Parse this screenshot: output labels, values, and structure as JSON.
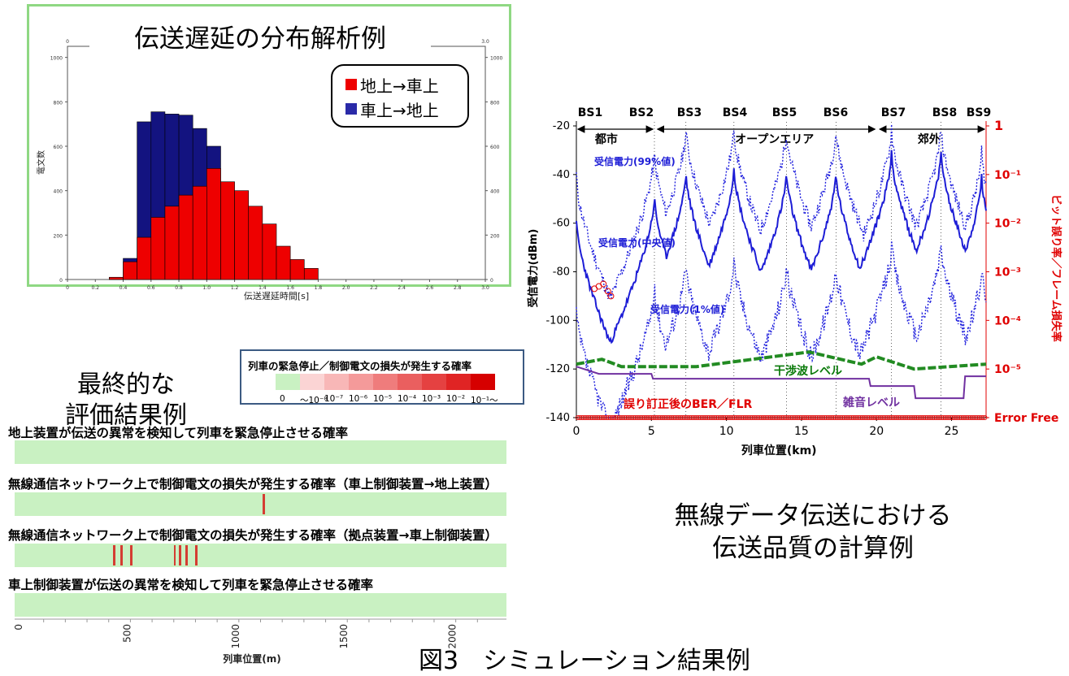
{
  "histogram": {
    "title": "伝送遅延の分布解析例",
    "xlabel": "伝送遅延時間[s]",
    "ylabel": "電文数",
    "x_ticks": [
      "0",
      "0.2",
      "0.4",
      "0.6",
      "0.8",
      "1.0",
      "1.2",
      "1.4",
      "1.6",
      "1.8",
      "2.0",
      "2.2",
      "2.4",
      "2.6",
      "2.8",
      "3.0"
    ],
    "top_x_ticks": [
      "0",
      "3.0"
    ],
    "y_ticks": [
      "0",
      "200",
      "400",
      "600",
      "800",
      "1000"
    ],
    "legend": [
      {
        "label": "地上→車上",
        "color": "#ee0000"
      },
      {
        "label": "車上→地上",
        "color": "#1a1a8c"
      }
    ]
  },
  "eval": {
    "caption_line1": "最終的な",
    "caption_line2": "評価結果例",
    "legend_title": "列車の緊急停止／制御電文の損失が発生する確率",
    "legend_ticks": [
      "0",
      "～10⁻⁸",
      "10⁻⁷",
      "10⁻⁶",
      "10⁻⁵",
      "10⁻⁴",
      "10⁻³",
      "10⁻²",
      "10⁻¹～"
    ],
    "bars": [
      {
        "title": "地上装置が伝送の異常を検知して列車を緊急停止させる確率",
        "events": []
      },
      {
        "title": "無線通信ネットワーク上で制御電文の損失が発生する確率（車上制御装置→地上装置）",
        "events": [
          1110
        ]
      },
      {
        "title": "無線通信ネットワーク上で制御電文の損失が発生する確率（拠点装置→車上制御装置）",
        "events": [
          420,
          455,
          500,
          700,
          725,
          755,
          800
        ]
      },
      {
        "title": "車上制御装置が伝送の異常を検知して列車を緊急停止させる確率",
        "events": []
      }
    ],
    "x_ticks": [
      "0",
      "500",
      "1000",
      "1500",
      "2000"
    ],
    "xlabel": "列車位置(m)"
  },
  "quality": {
    "caption_line1": "無線データ伝送における",
    "caption_line2": "伝送品質の計算例",
    "base_stations": [
      "BS1",
      "BS2",
      "BS3",
      "BS4",
      "BS5",
      "BS6",
      "BS7",
      "BS8",
      "BS9"
    ],
    "areas": [
      "都市",
      "オープンエリア",
      "郊外"
    ],
    "ylabel_left": "受信電力(dBm)",
    "ylabel_right": "ビット誤り率／フレーム損失率",
    "xlabel": "列車位置(km)",
    "y_ticks_left": [
      "-20",
      "-40",
      "-60",
      "-80",
      "-100",
      "-120",
      "-140"
    ],
    "y_ticks_right": [
      "1",
      "10⁻¹",
      "10⁻²",
      "10⁻³",
      "10⁻⁴",
      "10⁻⁵",
      "Error Free"
    ],
    "x_ticks": [
      "0",
      "5",
      "10",
      "15",
      "20",
      "25"
    ],
    "label_p99": "受信電力(99%値)",
    "label_median": "受信電力(中央値)",
    "label_p1": "受信電力(1%値)",
    "label_interference": "干渉波レベル",
    "label_noise": "雑音レベル",
    "label_ber": "誤り訂正後のBER／FLR"
  },
  "figure_caption": "図3　シミュレーション結果例",
  "chart_data": [
    {
      "type": "bar",
      "title": "伝送遅延の分布解析例",
      "xlabel": "伝送遅延時間[s]",
      "ylabel": "電文数",
      "xlim": [
        0,
        3.0
      ],
      "ylim": [
        0,
        1050
      ],
      "bin_width": 0.1,
      "categories": [
        0.3,
        0.4,
        0.5,
        0.6,
        0.7,
        0.8,
        0.9,
        1.0,
        1.1,
        1.2,
        1.3,
        1.4,
        1.5,
        1.6,
        1.7
      ],
      "series": [
        {
          "name": "地上→車上",
          "color": "#ee0000",
          "values": [
            10,
            80,
            190,
            280,
            330,
            380,
            420,
            500,
            440,
            400,
            330,
            250,
            150,
            90,
            50
          ]
        },
        {
          "name": "車上→地上",
          "color": "#1a1a8c",
          "values": [
            10,
            95,
            710,
            755,
            745,
            740,
            680,
            600,
            0,
            0,
            0,
            0,
            0,
            0,
            0
          ]
        }
      ]
    },
    {
      "type": "line",
      "title": "無線データ伝送における伝送品質の計算例",
      "xlabel": "列車位置(km)",
      "ylabel": "受信電力(dBm)",
      "xlim": [
        0,
        27.3
      ],
      "ylim": [
        -140,
        -18
      ],
      "bs_positions_km": [
        0,
        5.2,
        7.3,
        10.5,
        14.0,
        17.3,
        21.0,
        24.3,
        27.0
      ],
      "bs_levels_median_dBm": [
        -58,
        -48,
        -38,
        -36,
        -38,
        -38,
        -30,
        -30,
        -40
      ],
      "bs_levels_p99_dBm": [
        -40,
        -30,
        -20,
        -20,
        -20,
        -20,
        -20,
        -20,
        -30
      ],
      "series": [
        {
          "name": "受信電力(99%値)",
          "kind": "dotted"
        },
        {
          "name": "受信電力(中央値)",
          "kind": "solid"
        },
        {
          "name": "受信電力(1%値)",
          "kind": "dotted"
        },
        {
          "name": "干渉波レベル",
          "values_x": [
            0,
            1.7,
            3.0,
            8.0,
            15.5,
            19.0,
            20.0,
            22.5,
            27.3
          ],
          "values_y": [
            -118,
            -116,
            -119,
            -119,
            -113,
            -118,
            -115,
            -120,
            -118
          ]
        },
        {
          "name": "雑音レベル",
          "values_x": [
            0,
            1.5,
            5.0,
            5.1,
            19.5,
            19.6,
            22.5,
            22.6,
            25.8,
            25.9,
            27.3
          ],
          "values_y": [
            -119,
            -122,
            -122,
            -124,
            -124,
            -127,
            -127,
            -132,
            -132,
            -123,
            -123
          ]
        }
      ],
      "ber_red_circles": [
        {
          "x": 1.2,
          "y": -87
        },
        {
          "x": 1.5,
          "y": -86
        },
        {
          "x": 1.8,
          "y": -85
        },
        {
          "x": 2.1,
          "y": -88
        },
        {
          "x": 2.3,
          "y": -90
        }
      ]
    },
    {
      "type": "heatmap",
      "title": "",
      "xlabel": "列車位置(m)",
      "xlim": [
        0,
        2200
      ],
      "rows": [
        {
          "name": "地上装置が伝送の異常を検知して列車を緊急停止させる確率",
          "event_positions_m": []
        },
        {
          "name": "無線通信ネットワーク上で制御電文の損失が発生する確率（車上制御装置→地上装置）",
          "event_positions_m": [
            1110
          ]
        },
        {
          "name": "無線通信ネットワーク上で制御電文の損失が発生する確率（拠点装置→車上制御装置）",
          "event_positions_m": [
            420,
            455,
            500,
            700,
            725,
            755,
            800
          ]
        },
        {
          "name": "車上制御装置が伝送の異常を検知して列車を緊急停止させる確率",
          "event_positions_m": []
        }
      ]
    }
  ]
}
